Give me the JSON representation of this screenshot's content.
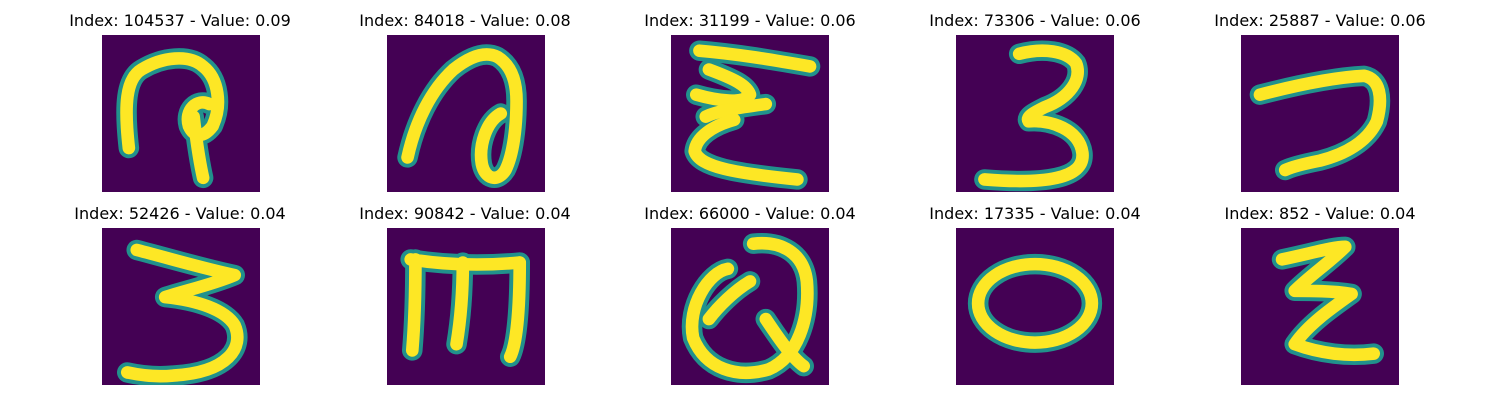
{
  "colors": {
    "background": "#440154",
    "stroke": "#fde725",
    "edge": "#21918c"
  },
  "panels": [
    {
      "title": "Index: 104537 - Value: 0.09",
      "glyph": "handwritten-character-p"
    },
    {
      "title": "Index: 84018 - Value: 0.08",
      "glyph": "handwritten-character-loop"
    },
    {
      "title": "Index: 31199 - Value: 0.06",
      "glyph": "handwritten-character-sigma"
    },
    {
      "title": "Index: 73306 - Value: 0.06",
      "glyph": "handwritten-character-3"
    },
    {
      "title": "Index: 25887 - Value: 0.06",
      "glyph": "handwritten-character-7"
    },
    {
      "title": "Index: 52426 - Value: 0.04",
      "glyph": "handwritten-character-3-wide"
    },
    {
      "title": "Index: 90842 - Value: 0.04",
      "glyph": "handwritten-character-m"
    },
    {
      "title": "Index: 66000 - Value: 0.04",
      "glyph": "handwritten-character-q"
    },
    {
      "title": "Index: 17335 - Value: 0.04",
      "glyph": "handwritten-character-o"
    },
    {
      "title": "Index: 852 - Value: 0.04",
      "glyph": "handwritten-character-z"
    }
  ]
}
